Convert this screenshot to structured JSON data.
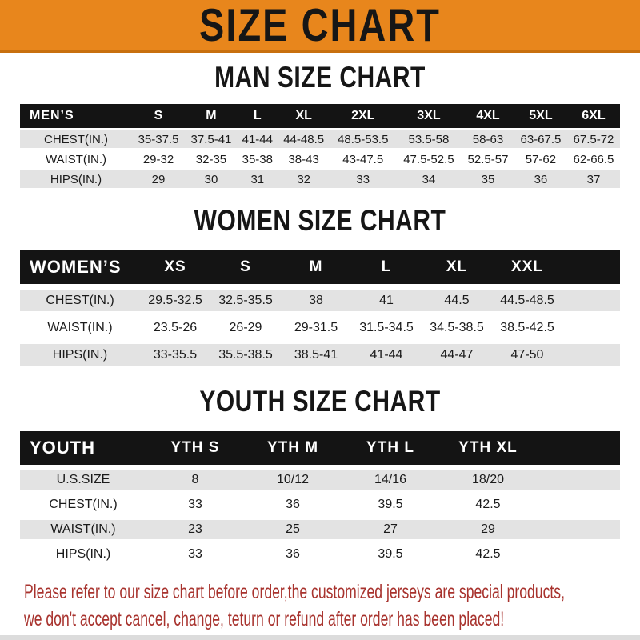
{
  "banner": {
    "title": "SIZE CHART"
  },
  "sections": [
    {
      "heading": "MAN SIZE CHART",
      "table": {
        "label": "MEN’S",
        "columns": [
          "S",
          "M",
          "L",
          "XL",
          "2XL",
          "3XL",
          "4XL",
          "5XL",
          "6XL"
        ],
        "rows": [
          {
            "label": "CHEST(IN.)",
            "values": [
              "35-37.5",
              "37.5-41",
              "41-44",
              "44-48.5",
              "48.5-53.5",
              "53.5-58",
              "58-63",
              "63-67.5",
              "67.5-72"
            ]
          },
          {
            "label": "WAIST(IN.)",
            "values": [
              "29-32",
              "32-35",
              "35-38",
              "38-43",
              "43-47.5",
              "47.5-52.5",
              "52.5-57",
              "57-62",
              "62-66.5"
            ]
          },
          {
            "label": "HIPS(IN.)",
            "values": [
              "29",
              "30",
              "31",
              "32",
              "33",
              "34",
              "35",
              "36",
              "37"
            ]
          }
        ]
      }
    },
    {
      "heading": "WOMEN SIZE CHART",
      "table": {
        "label": "WOMEN’S",
        "columns": [
          "XS",
          "S",
          "M",
          "L",
          "XL",
          "XXL"
        ],
        "rows": [
          {
            "label": "CHEST(IN.)",
            "values": [
              "29.5-32.5",
              "32.5-35.5",
              "38",
              "41",
              "44.5",
              "44.5-48.5"
            ]
          },
          {
            "label": "WAIST(IN.)",
            "values": [
              "23.5-26",
              "26-29",
              "29-31.5",
              "31.5-34.5",
              "34.5-38.5",
              "38.5-42.5"
            ]
          },
          {
            "label": "HIPS(IN.)",
            "values": [
              "33-35.5",
              "35.5-38.5",
              "38.5-41",
              "41-44",
              "44-47",
              "47-50"
            ]
          }
        ]
      }
    },
    {
      "heading": "YOUTH SIZE CHART",
      "table": {
        "label": "YOUTH",
        "columns": [
          "YTH S",
          "YTH M",
          "YTH L",
          "YTH XL"
        ],
        "rows": [
          {
            "label": "U.S.SIZE",
            "values": [
              "8",
              "10/12",
              "14/16",
              "18/20"
            ]
          },
          {
            "label": "CHEST(IN.)",
            "values": [
              "33",
              "36",
              "39.5",
              "42.5"
            ]
          },
          {
            "label": "WAIST(IN.)",
            "values": [
              "23",
              "25",
              "27",
              "29"
            ]
          },
          {
            "label": "HIPS(IN.)",
            "values": [
              "33",
              "36",
              "39.5",
              "42.5"
            ]
          }
        ]
      }
    }
  ],
  "footer": {
    "line1": "Please refer to our size chart before order,the customized jerseys are special products,",
    "line2": "we don't accept cancel, change, teturn or refund after order has been placed!"
  },
  "colors": {
    "banner_orange": "#E8861C",
    "banner_edge": "#C8700E",
    "header_black": "#141414",
    "row_gray": "#E3E3E3",
    "footer_red": "#A8332E"
  }
}
